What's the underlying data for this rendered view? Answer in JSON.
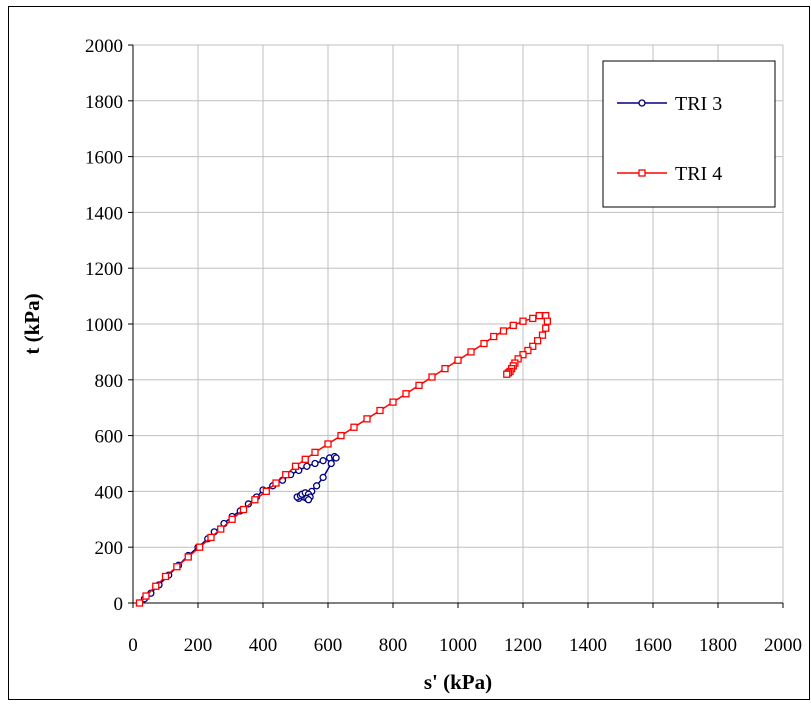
{
  "chart_data": {
    "type": "scatter",
    "title": "",
    "xlabel": "s' (kPa)",
    "ylabel": "t (kPa)",
    "xlim": [
      0,
      2000
    ],
    "ylim": [
      0,
      2000
    ],
    "xticks": [
      0,
      200,
      400,
      600,
      800,
      1000,
      1200,
      1400,
      1600,
      1800,
      2000
    ],
    "yticks": [
      0,
      200,
      400,
      600,
      800,
      1000,
      1200,
      1400,
      1600,
      1800,
      2000
    ],
    "grid": true,
    "legend_position": "top-right",
    "series": [
      {
        "name": "TRI 3",
        "color": "#000080",
        "marker": "circle",
        "x": [
          20,
          35,
          55,
          80,
          110,
          140,
          170,
          200,
          230,
          250,
          280,
          305,
          330,
          355,
          380,
          400,
          430,
          460,
          485,
          510,
          535,
          560,
          585,
          605,
          620,
          625,
          610,
          585,
          565,
          550,
          540,
          525,
          510,
          505,
          515,
          520,
          530,
          540,
          545,
          535,
          540
        ],
        "y": [
          0,
          15,
          35,
          65,
          100,
          135,
          170,
          200,
          230,
          255,
          285,
          310,
          330,
          355,
          380,
          405,
          420,
          440,
          460,
          475,
          490,
          500,
          510,
          520,
          525,
          520,
          500,
          450,
          420,
          400,
          385,
          380,
          375,
          380,
          385,
          390,
          395,
          390,
          380,
          375,
          370
        ]
      },
      {
        "name": "TRI 4",
        "color": "#ff0000",
        "marker": "square",
        "x": [
          20,
          40,
          70,
          100,
          135,
          170,
          205,
          240,
          270,
          305,
          340,
          375,
          410,
          440,
          470,
          500,
          530,
          560,
          600,
          640,
          680,
          720,
          760,
          800,
          840,
          880,
          920,
          960,
          1000,
          1040,
          1080,
          1110,
          1140,
          1170,
          1200,
          1230,
          1250,
          1270,
          1275,
          1270,
          1260,
          1245,
          1230,
          1215,
          1200,
          1185,
          1175,
          1170,
          1165,
          1160,
          1155,
          1150
        ],
        "y": [
          0,
          25,
          60,
          95,
          130,
          165,
          200,
          235,
          265,
          300,
          335,
          370,
          400,
          430,
          460,
          490,
          515,
          540,
          570,
          600,
          630,
          660,
          690,
          720,
          750,
          780,
          810,
          840,
          870,
          900,
          930,
          955,
          975,
          995,
          1010,
          1020,
          1030,
          1030,
          1010,
          985,
          960,
          940,
          920,
          905,
          890,
          875,
          860,
          850,
          840,
          830,
          825,
          820
        ]
      }
    ]
  }
}
